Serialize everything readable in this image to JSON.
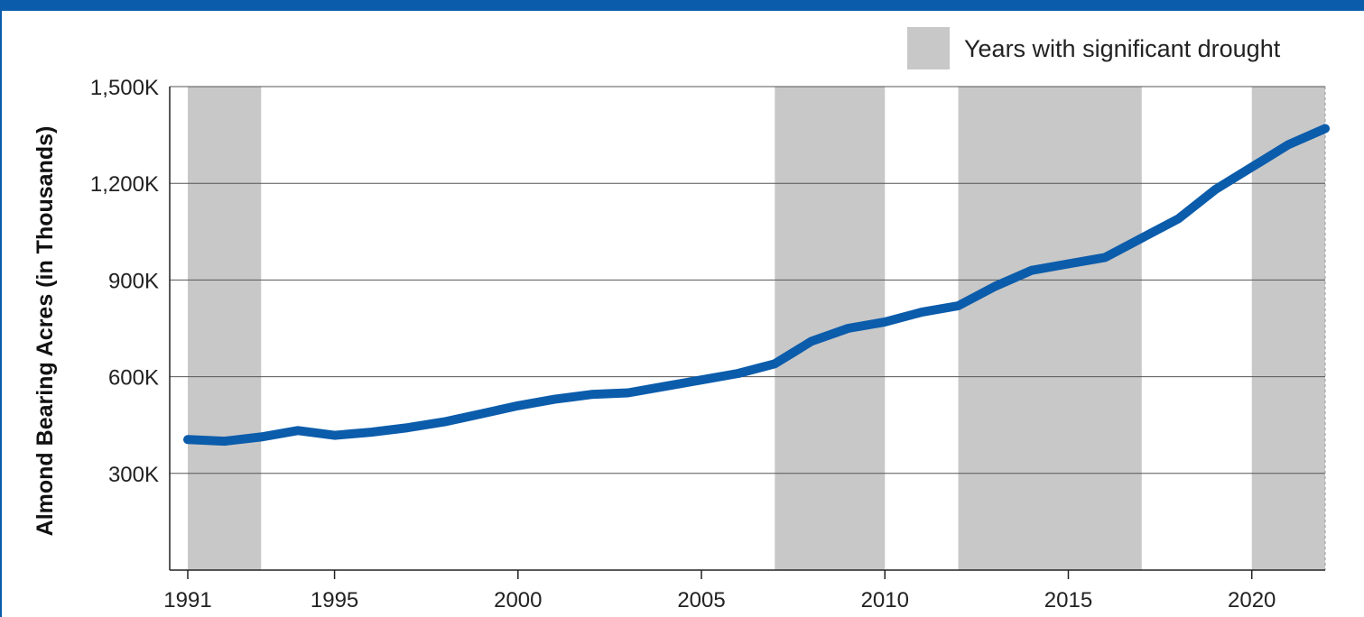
{
  "chart_data": {
    "type": "line",
    "title": "",
    "xlabel": "",
    "ylabel": "Almond Bearing Acres (in Thousands)",
    "xlim": [
      1991,
      2022
    ],
    "ylim": [
      0,
      1500000
    ],
    "x_ticks": [
      "1991",
      "1995",
      "2000",
      "2005",
      "2010",
      "2015",
      "2020"
    ],
    "y_ticks": [
      {
        "value": 300000,
        "label": "300K"
      },
      {
        "value": 600000,
        "label": "600K"
      },
      {
        "value": 900000,
        "label": "900K"
      },
      {
        "value": 1200000,
        "label": "1,200K"
      },
      {
        "value": 1500000,
        "label": "1,500K"
      }
    ],
    "grid": "horizontal",
    "legend": {
      "position": "top-right",
      "label": "Years with significant drought",
      "color": "#c8c8c8"
    },
    "drought_periods": [
      [
        1991,
        1993
      ],
      [
        2007,
        2010
      ],
      [
        2012,
        2017
      ],
      [
        2020,
        2022
      ]
    ],
    "series": [
      {
        "color": "#0b5cab",
        "x": [
          1991,
          1992,
          1993,
          1994,
          1995,
          1996,
          1997,
          1998,
          1999,
          2000,
          2001,
          2002,
          2003,
          2004,
          2005,
          2006,
          2007,
          2008,
          2009,
          2010,
          2011,
          2012,
          2013,
          2014,
          2015,
          2016,
          2017,
          2018,
          2019,
          2020,
          2021,
          2022
        ],
        "values": [
          405000,
          400000,
          413000,
          433000,
          418000,
          428000,
          442000,
          460000,
          485000,
          510000,
          530000,
          545000,
          550000,
          570000,
          590000,
          610000,
          640000,
          710000,
          750000,
          770000,
          800000,
          820000,
          880000,
          930000,
          950000,
          970000,
          1030000,
          1090000,
          1180000,
          1250000,
          1320000,
          1370000
        ]
      }
    ]
  }
}
